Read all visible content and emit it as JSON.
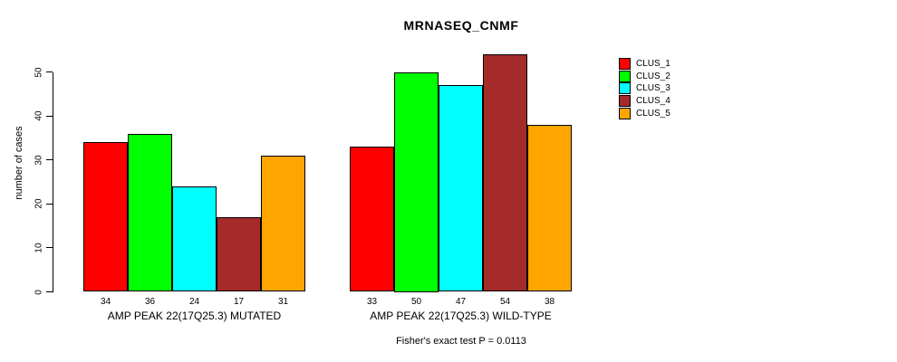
{
  "chart_data": {
    "type": "bar",
    "title": "MRNASEQ_CNMF",
    "xlabel": "",
    "ylabel": "number of cases",
    "ylim": [
      0,
      50
    ],
    "yticks": [
      0,
      10,
      20,
      30,
      40,
      50
    ],
    "grid": false,
    "legend_position": "right",
    "bar_value_labels_shown": true,
    "series": [
      {
        "name": "CLUS_1",
        "color": "#FF0000"
      },
      {
        "name": "CLUS_2",
        "color": "#00FF00"
      },
      {
        "name": "CLUS_3",
        "color": "#00FFFF"
      },
      {
        "name": "CLUS_4",
        "color": "#A52A2A"
      },
      {
        "name": "CLUS_5",
        "color": "#FFA500"
      }
    ],
    "groups": [
      {
        "label": "AMP PEAK 22(17Q25.3) MUTATED",
        "values": [
          34,
          36,
          24,
          17,
          31
        ]
      },
      {
        "label": "AMP PEAK 22(17Q25.3) WILD-TYPE",
        "values": [
          33,
          50,
          47,
          54,
          38
        ]
      }
    ],
    "footnote": "Fisher's exact test P = 0.0113"
  }
}
